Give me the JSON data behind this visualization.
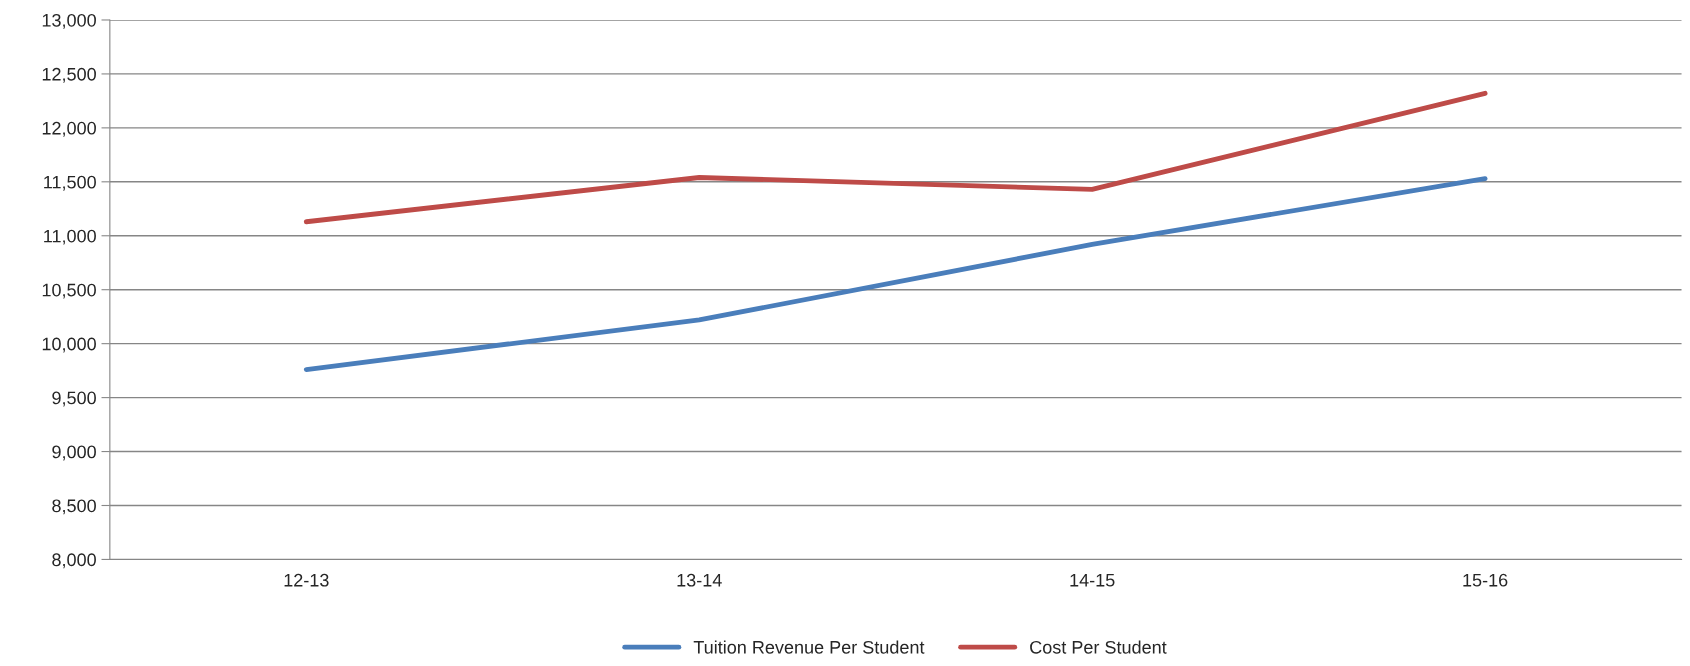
{
  "chart_data": {
    "type": "line",
    "categories": [
      "12-13",
      "13-14",
      "14-15",
      "15-16"
    ],
    "series": [
      {
        "name": "Tuition Revenue Per Student",
        "color": "#4a7ebb",
        "values": [
          9760,
          10220,
          10920,
          11530
        ]
      },
      {
        "name": "Cost Per Student",
        "color": "#be4b48",
        "values": [
          11130,
          11540,
          11430,
          12320
        ]
      }
    ],
    "ylim": [
      8000,
      13000
    ],
    "yticks": [
      {
        "value": 8000,
        "label": "8,000"
      },
      {
        "value": 8500,
        "label": "8,500"
      },
      {
        "value": 9000,
        "label": "9,000"
      },
      {
        "value": 9500,
        "label": "9,500"
      },
      {
        "value": 10000,
        "label": "10,000"
      },
      {
        "value": 10500,
        "label": "10,500"
      },
      {
        "value": 11000,
        "label": "11,000"
      },
      {
        "value": 11500,
        "label": "11,500"
      },
      {
        "value": 12000,
        "label": "12,000"
      },
      {
        "value": 12500,
        "label": "12,500"
      },
      {
        "value": 13000,
        "label": "13,000"
      }
    ],
    "grid": "y",
    "legend": "bottom",
    "marker": "none",
    "line_style": "solid"
  }
}
